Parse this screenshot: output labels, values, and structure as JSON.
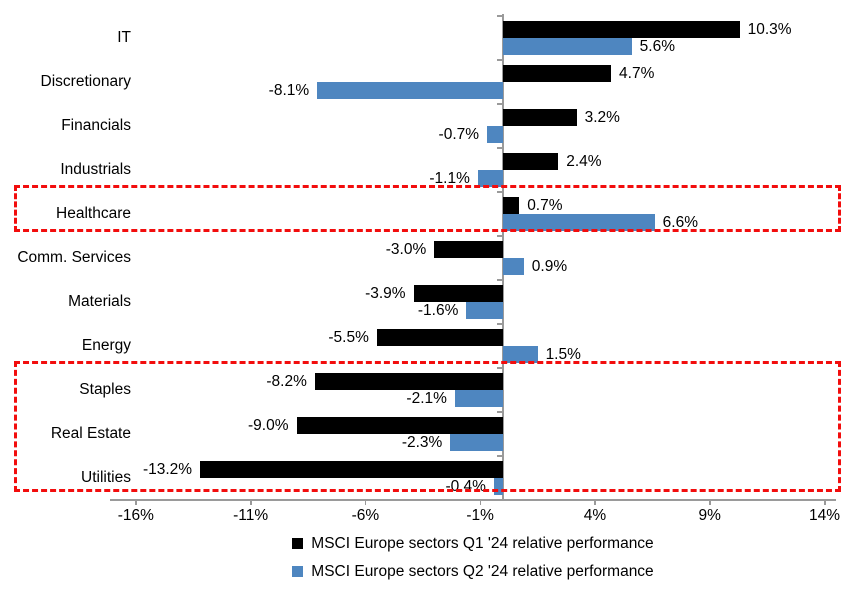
{
  "chart_data": {
    "type": "bar",
    "orientation": "horizontal",
    "title": "",
    "categories": [
      "IT",
      "Discretionary",
      "Financials",
      "Industrials",
      "Healthcare",
      "Comm. Services",
      "Materials",
      "Energy",
      "Staples",
      "Real Estate",
      "Utilities"
    ],
    "series": [
      {
        "name": "MSCI Europe sectors Q1 '24 relative performance",
        "color": "#000000",
        "values": [
          10.3,
          4.7,
          3.2,
          2.4,
          0.7,
          -3.0,
          -3.9,
          -5.5,
          -8.2,
          -9.0,
          -13.2
        ],
        "labels": [
          "10.3%",
          "4.7%",
          "3.2%",
          "2.4%",
          "0.7%",
          "-3.0%",
          "-3.9%",
          "-5.5%",
          "-8.2%",
          "-9.0%",
          "-13.2%"
        ]
      },
      {
        "name": "MSCI Europe sectors Q2 '24 relative performance",
        "color": "#4E86C0",
        "values": [
          5.6,
          -8.1,
          -0.7,
          -1.1,
          6.6,
          0.9,
          -1.6,
          1.5,
          -2.1,
          -2.3,
          -0.4
        ],
        "labels": [
          "5.6%",
          "-8.1%",
          "-0.7%",
          "-1.1%",
          "6.6%",
          "0.9%",
          "-1.6%",
          "1.5%",
          "-2.1%",
          "-2.3%",
          "-0.4%"
        ]
      }
    ],
    "x_ticks": [
      {
        "value": -16,
        "label": "-16%"
      },
      {
        "value": -11,
        "label": "-11%"
      },
      {
        "value": -6,
        "label": "-6%"
      },
      {
        "value": -1,
        "label": "-1%"
      },
      {
        "value": 4,
        "label": "4%"
      },
      {
        "value": 9,
        "label": "9%"
      },
      {
        "value": 14,
        "label": "14%"
      }
    ],
    "xlim": [
      -17.125,
      14.5
    ],
    "grid": false,
    "legend_position": "bottom-center",
    "axis_color": "#9a9a9a",
    "highlight_color": "#f20d0d",
    "highlights": [
      {
        "from_category": "Healthcare",
        "to_category": "Healthcare"
      },
      {
        "from_category": "Staples",
        "to_category": "Utilities"
      }
    ]
  }
}
